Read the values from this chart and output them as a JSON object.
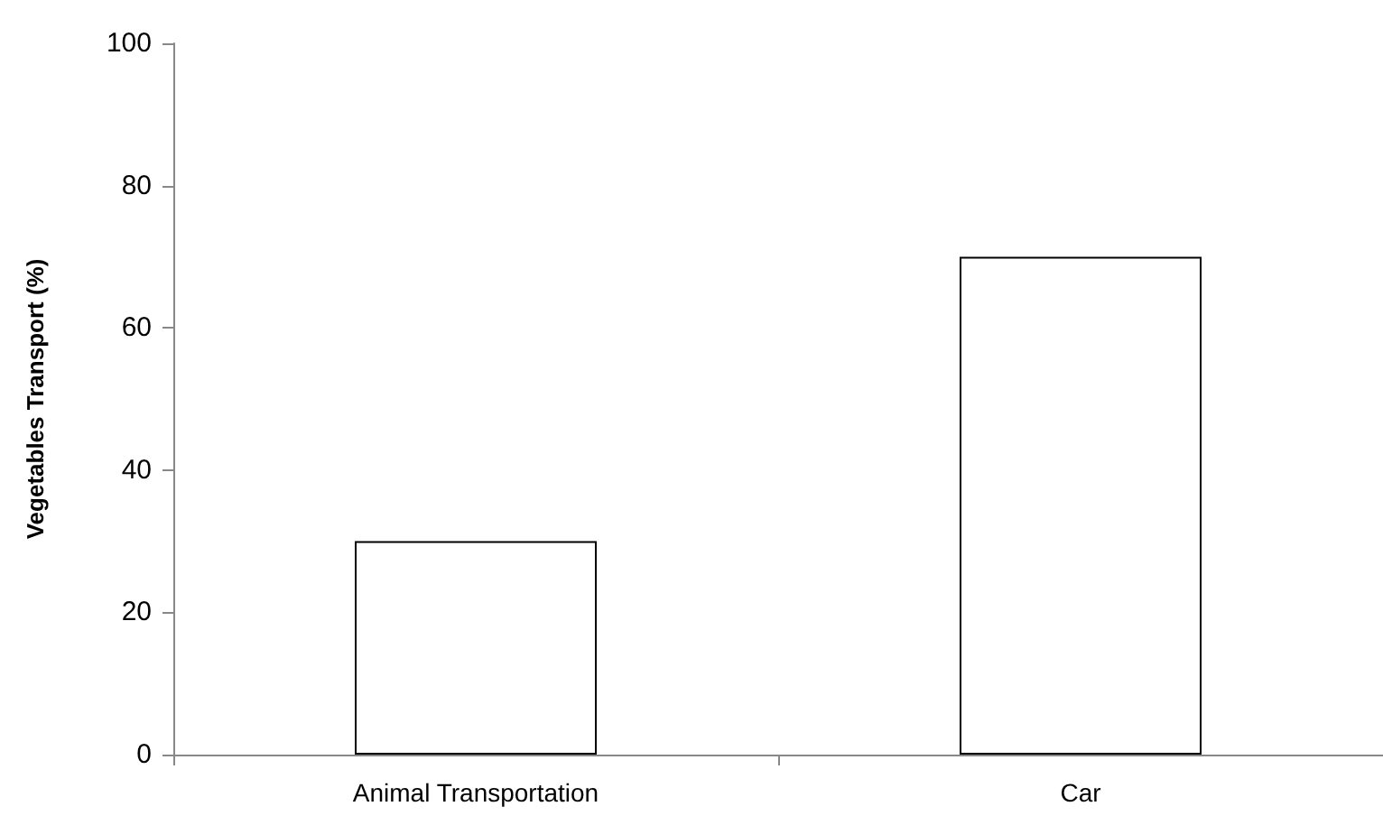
{
  "chart_data": {
    "type": "bar",
    "ylabel": "Vegetables Transport (%)",
    "categories": [
      "Animal Transportation",
      "Car"
    ],
    "values": [
      30,
      70
    ],
    "color": "#ffffff",
    "ylim": [
      0,
      100
    ],
    "yticks": [
      0,
      20,
      40,
      60,
      80,
      100
    ],
    "grid": false
  }
}
